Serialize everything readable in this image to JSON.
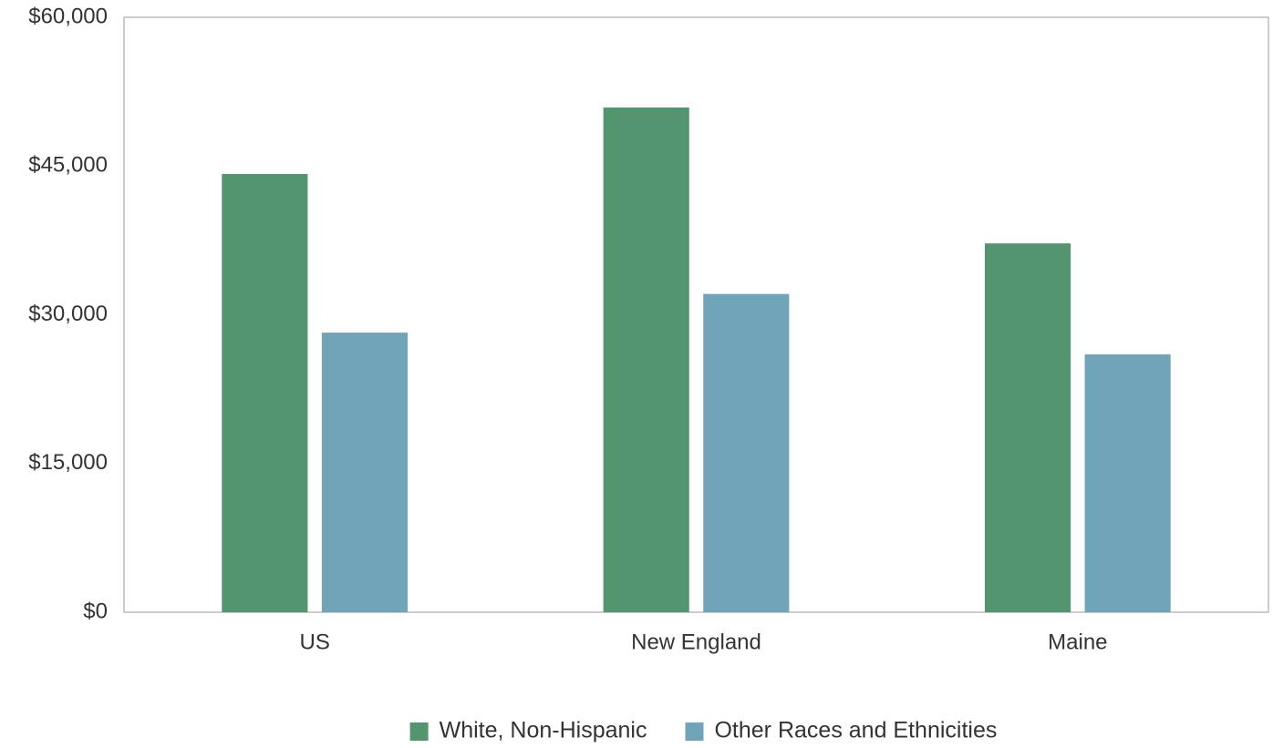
{
  "chart_data": {
    "type": "bar",
    "title": "",
    "xlabel": "",
    "ylabel": "",
    "categories": [
      "US",
      "New England",
      "Maine"
    ],
    "series": [
      {
        "name": "White, Non-Hispanic",
        "color": "#52956e",
        "values": [
          44200,
          50900,
          37200
        ]
      },
      {
        "name": "Other Races and Ethnicities",
        "color": "#6fa4b9",
        "values": [
          28200,
          32100,
          26000
        ]
      }
    ],
    "ylim": [
      0,
      60000
    ],
    "yticks": [
      0,
      15000,
      30000,
      45000,
      60000
    ],
    "ytick_labels": [
      "$0",
      "$15,000",
      "$30,000",
      "$45,000",
      "$60,000"
    ],
    "grid": false,
    "legend_position": "bottom-center"
  }
}
